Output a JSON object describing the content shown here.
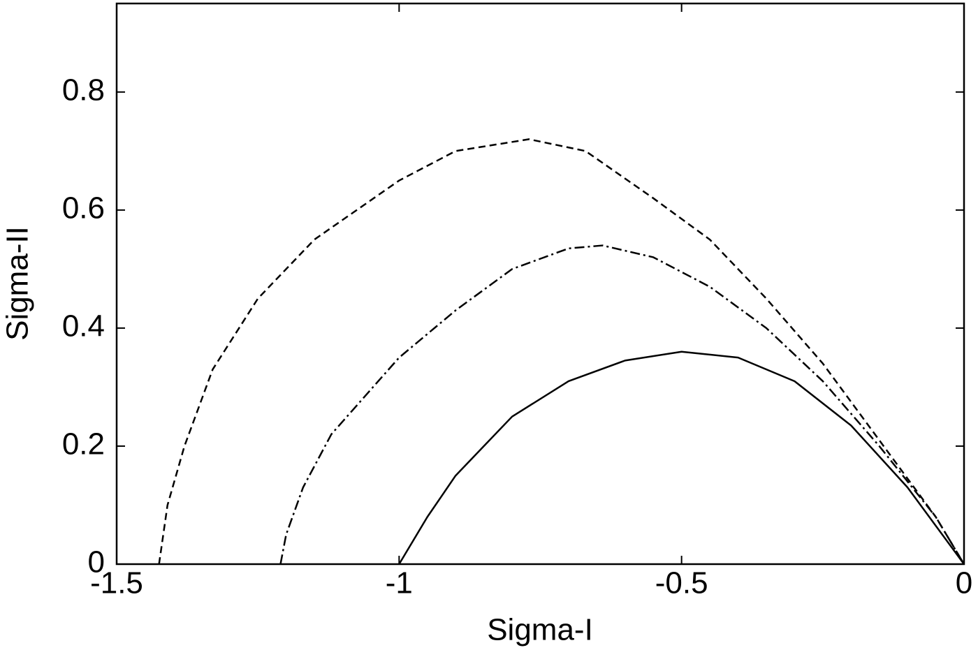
{
  "chart_data": {
    "type": "line",
    "x_label": "Sigma-I",
    "y_label": "Sigma-II",
    "xlim": [
      -1.5,
      0
    ],
    "ylim": [
      0,
      0.95
    ],
    "xticks": [
      -1.5,
      -1,
      -0.5,
      0
    ],
    "yticks": [
      0,
      0.2,
      0.4,
      0.6,
      0.8
    ],
    "grid": false,
    "series": [
      {
        "color": "#000000",
        "dash": "solid",
        "x": [
          -1,
          -0.95,
          -0.9,
          -0.8,
          -0.7,
          -0.6,
          -0.5,
          -0.4,
          -0.3,
          -0.2,
          -0.1,
          0
        ],
        "values": [
          0,
          0.08,
          0.15,
          0.25,
          0.31,
          0.345,
          0.36,
          0.35,
          0.31,
          0.235,
          0.13,
          0
        ]
      },
      {
        "color": "#000000",
        "dash": "dashdot",
        "x": [
          -1.21,
          -1.2,
          -1.17,
          -1.12,
          -1.0,
          -0.9,
          -0.8,
          -0.7,
          -0.64,
          -0.55,
          -0.45,
          -0.35,
          -0.25,
          -0.15,
          -0.05,
          0
        ],
        "values": [
          0,
          0.05,
          0.13,
          0.22,
          0.35,
          0.43,
          0.5,
          0.535,
          0.54,
          0.52,
          0.47,
          0.4,
          0.31,
          0.2,
          0.08,
          0
        ]
      },
      {
        "color": "#000000",
        "dash": "dashed",
        "x": [
          -1.425,
          -1.41,
          -1.38,
          -1.33,
          -1.25,
          -1.15,
          -1.0,
          -0.9,
          -0.77,
          -0.67,
          -0.55,
          -0.45,
          -0.35,
          -0.25,
          -0.15,
          -0.05,
          0
        ],
        "values": [
          0,
          0.1,
          0.2,
          0.33,
          0.45,
          0.55,
          0.65,
          0.7,
          0.72,
          0.7,
          0.62,
          0.55,
          0.45,
          0.34,
          0.21,
          0.08,
          0
        ]
      }
    ]
  }
}
